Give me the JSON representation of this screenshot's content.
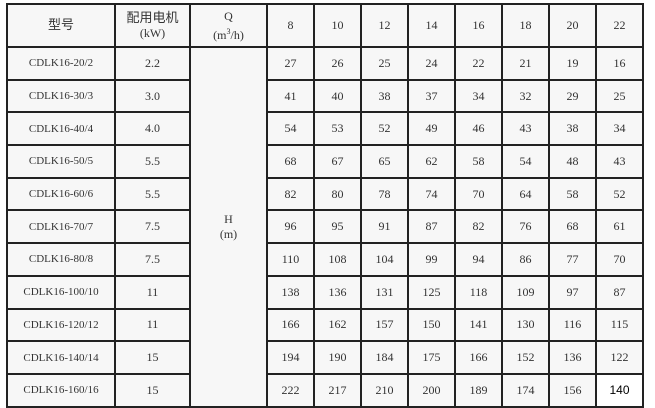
{
  "header": {
    "model": "型号",
    "motor_line1": "配用电机",
    "motor_line2": "(kW)",
    "q_line1": "Q",
    "q_unit_prefix": "(m",
    "q_unit_sup": "3",
    "q_unit_suffix": "/h)",
    "flows": [
      "8",
      "10",
      "12",
      "14",
      "16",
      "18",
      "20",
      "22"
    ]
  },
  "h_label": {
    "line1": "H",
    "line2": "(m)"
  },
  "rows": [
    {
      "model": "CDLK16-20/2",
      "motor": "2.2",
      "heads": [
        "27",
        "26",
        "25",
        "24",
        "22",
        "21",
        "19",
        "16"
      ]
    },
    {
      "model": "CDLK16-30/3",
      "motor": "3.0",
      "heads": [
        "41",
        "40",
        "38",
        "37",
        "34",
        "32",
        "29",
        "25"
      ]
    },
    {
      "model": "CDLK16-40/4",
      "motor": "4.0",
      "heads": [
        "54",
        "53",
        "52",
        "49",
        "46",
        "43",
        "38",
        "34"
      ]
    },
    {
      "model": "CDLK16-50/5",
      "motor": "5.5",
      "heads": [
        "68",
        "67",
        "65",
        "62",
        "58",
        "54",
        "48",
        "43"
      ]
    },
    {
      "model": "CDLK16-60/6",
      "motor": "5.5",
      "heads": [
        "82",
        "80",
        "78",
        "74",
        "70",
        "64",
        "58",
        "52"
      ]
    },
    {
      "model": "CDLK16-70/7",
      "motor": "7.5",
      "heads": [
        "96",
        "95",
        "91",
        "87",
        "82",
        "76",
        "68",
        "61"
      ]
    },
    {
      "model": "CDLK16-80/8",
      "motor": "7.5",
      "heads": [
        "110",
        "108",
        "104",
        "99",
        "94",
        "86",
        "77",
        "70"
      ]
    },
    {
      "model": "CDLK16-100/10",
      "motor": "11",
      "heads": [
        "138",
        "136",
        "131",
        "125",
        "118",
        "109",
        "97",
        "87"
      ]
    },
    {
      "model": "CDLK16-120/12",
      "motor": "11",
      "heads": [
        "166",
        "162",
        "157",
        "150",
        "141",
        "130",
        "116",
        "115"
      ]
    },
    {
      "model": "CDLK16-140/14",
      "motor": "15",
      "heads": [
        "194",
        "190",
        "184",
        "175",
        "166",
        "152",
        "136",
        "122"
      ]
    },
    {
      "model": "CDLK16-160/16",
      "motor": "15",
      "heads": [
        "222",
        "217",
        "210",
        "200",
        "189",
        "174",
        "156",
        "140"
      ]
    }
  ]
}
